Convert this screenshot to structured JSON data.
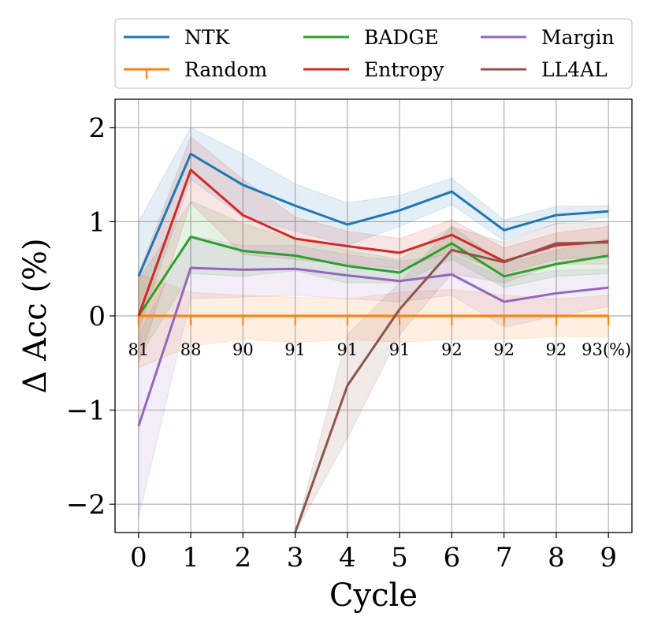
{
  "chart_data": {
    "type": "line",
    "xlabel": "Cycle",
    "ylabel": "Δ Acc (%)",
    "x": [
      0,
      1,
      2,
      3,
      4,
      5,
      6,
      7,
      8,
      9
    ],
    "xlim": [
      -0.45,
      9.45
    ],
    "ylim": [
      -2.3,
      2.3
    ],
    "xticks": [
      "0",
      "1",
      "2",
      "3",
      "4",
      "5",
      "6",
      "7",
      "8",
      "9"
    ],
    "yticks": [
      {
        "value": -2,
        "label": "−2"
      },
      {
        "value": -1,
        "label": "−1"
      },
      {
        "value": 0,
        "label": "0"
      },
      {
        "value": 1,
        "label": "1"
      },
      {
        "value": 2,
        "label": "2"
      }
    ],
    "grid": true,
    "legend_position": "top",
    "series": [
      {
        "name": "NTK",
        "color": "#1f77b4",
        "values": [
          0.42,
          1.72,
          1.39,
          1.17,
          0.97,
          1.12,
          1.32,
          0.91,
          1.07,
          1.11
        ],
        "lower": [
          -0.15,
          1.45,
          1.05,
          0.9,
          0.75,
          0.95,
          1.18,
          0.8,
          0.98,
          1.05
        ],
        "upper": [
          1.0,
          2.0,
          1.72,
          1.4,
          1.2,
          1.28,
          1.46,
          1.02,
          1.16,
          1.17
        ]
      },
      {
        "name": "Random",
        "color": "#ff7f0e",
        "values": [
          0,
          0,
          0,
          0,
          0,
          0,
          0,
          0,
          0,
          0
        ],
        "lower": [
          -0.55,
          -0.32,
          -0.25,
          -0.28,
          -0.25,
          -0.28,
          -0.25,
          -0.25,
          -0.22,
          -0.22
        ],
        "upper": [
          0.45,
          0.25,
          0.22,
          0.2,
          0.18,
          0.25,
          0.28,
          0.22,
          0.18,
          0.22
        ]
      },
      {
        "name": "BADGE",
        "color": "#2ca02c",
        "values": [
          0.0,
          0.84,
          0.69,
          0.64,
          0.53,
          0.46,
          0.77,
          0.42,
          0.55,
          0.64
        ],
        "lower": [
          -0.45,
          0.45,
          0.42,
          0.48,
          0.35,
          0.35,
          0.6,
          0.3,
          0.42,
          0.45
        ],
        "upper": [
          0.38,
          1.22,
          0.98,
          0.82,
          0.7,
          0.6,
          0.95,
          0.55,
          0.7,
          0.82
        ]
      },
      {
        "name": "Entropy",
        "color": "#d62728",
        "values": [
          0.0,
          1.55,
          1.07,
          0.82,
          0.74,
          0.67,
          0.86,
          0.58,
          0.75,
          0.79
        ],
        "lower": [
          -0.5,
          1.2,
          0.65,
          0.6,
          0.55,
          0.5,
          0.68,
          0.45,
          0.6,
          0.62
        ],
        "upper": [
          0.45,
          1.9,
          1.45,
          1.05,
          0.9,
          0.82,
          1.02,
          0.72,
          0.88,
          0.95
        ]
      },
      {
        "name": "Margin",
        "color": "#9467bd",
        "values": [
          -1.17,
          0.51,
          0.49,
          0.5,
          0.43,
          0.37,
          0.44,
          0.15,
          0.24,
          0.3
        ],
        "lower": [
          -2.15,
          0.18,
          0.2,
          0.22,
          0.18,
          0.15,
          0.22,
          -0.12,
          0.0,
          0.1
        ],
        "upper": [
          -0.2,
          0.85,
          0.75,
          0.75,
          0.65,
          0.58,
          0.66,
          0.4,
          0.48,
          0.5
        ]
      },
      {
        "name": "LL4AL",
        "color": "#8c564b",
        "values": [
          null,
          null,
          null,
          -2.3,
          -0.74,
          0.07,
          0.7,
          0.57,
          0.77,
          0.78
        ],
        "lower": [
          null,
          null,
          null,
          -2.3,
          -1.3,
          -0.2,
          0.45,
          0.35,
          0.55,
          0.55
        ],
        "upper": [
          null,
          null,
          null,
          -2.3,
          -0.2,
          0.35,
          0.95,
          0.78,
          0.98,
          1.0
        ]
      }
    ],
    "annotations": [
      {
        "x": 0,
        "text": "81"
      },
      {
        "x": 1,
        "text": "88"
      },
      {
        "x": 2,
        "text": "90"
      },
      {
        "x": 3,
        "text": "91"
      },
      {
        "x": 4,
        "text": "91"
      },
      {
        "x": 5,
        "text": "91"
      },
      {
        "x": 6,
        "text": "92"
      },
      {
        "x": 7,
        "text": "92"
      },
      {
        "x": 8,
        "text": "92"
      },
      {
        "x": 9,
        "text": "93(%)"
      }
    ]
  }
}
